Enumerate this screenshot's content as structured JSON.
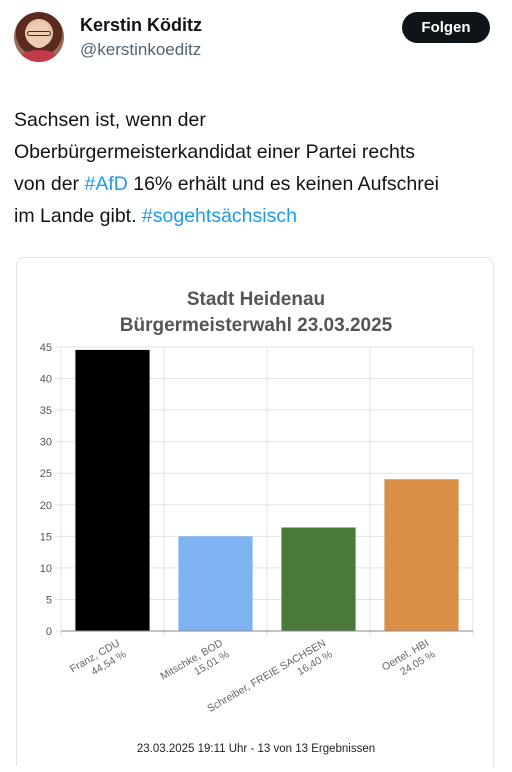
{
  "user": {
    "name": "Kerstin Köditz",
    "handle": "@kerstinkoeditz",
    "follow_label": "Folgen"
  },
  "tweet": {
    "line1": "Sachsen ist, wenn der",
    "line2": "Oberbürgermeisterkandidat einer Partei rechts",
    "line3_pre": "von der ",
    "line3_tag": "#AfD",
    "line3_post": " 16% erhält und es keinen Aufschrei",
    "line4_pre": "im Lande gibt. ",
    "line4_tag": "#sogehtsächsisch",
    "tag_color": "#1d9bf0"
  },
  "chart_data": {
    "type": "bar",
    "title": "Stadt Heidenau",
    "subtitle": "Bürgermeisterwahl 23.03.2025",
    "footer": "23.03.2025 19:11 Uhr - 13 von 13 Ergebnissen",
    "ylim": [
      0,
      45
    ],
    "yticks": [
      "0",
      "5",
      "10",
      "15",
      "20",
      "25",
      "30",
      "35",
      "40",
      "45"
    ],
    "grid": true,
    "bars": [
      {
        "name": "Franz, CDU",
        "label": "44,54 %",
        "value": 44.54,
        "color": "#000000"
      },
      {
        "name": "Mitschke, BOD",
        "label": "15,01 %",
        "value": 15.01,
        "color": "#7fb2f0"
      },
      {
        "name": "Schreiber, FREIE SACHSEN",
        "label": "16,40 %",
        "value": 16.4,
        "color": "#4a7a3a"
      },
      {
        "name": "Oertel, HBI",
        "label": "24,05 %",
        "value": 24.05,
        "color": "#d98f46"
      }
    ]
  }
}
